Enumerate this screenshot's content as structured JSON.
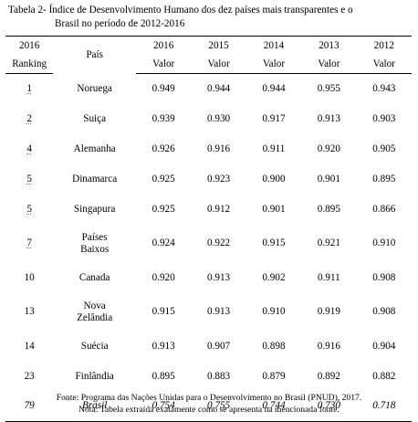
{
  "caption": {
    "line1": "Tabela 2- Índice de Desenvolvimento  Humano dos dez países mais transparentes  e o",
    "line2": "Brasil  no período  de 2012-2016"
  },
  "header": {
    "rank_year": "2016",
    "rank_label": "Ranking",
    "country_label": "País",
    "years": [
      "2016",
      "2015",
      "2014",
      "2013",
      "2012"
    ],
    "value_label": "Valor"
  },
  "rows": [
    {
      "rank": "1",
      "country": "Noruega",
      "values": [
        "0.949",
        "0.944",
        "0.944",
        "0.955",
        "0.943"
      ]
    },
    {
      "rank": "2",
      "country": "Suiça",
      "values": [
        "0.939",
        "0.930",
        "0.917",
        "0.913",
        "0.903"
      ]
    },
    {
      "rank": "4",
      "country": "Alemanha",
      "values": [
        "0.926",
        "0.916",
        "0.911",
        "0.920",
        "0.905"
      ]
    },
    {
      "rank": "5",
      "country": "Dinamarca",
      "values": [
        "0.925",
        "0.923",
        "0.900",
        "0.901",
        "0.895"
      ]
    },
    {
      "rank": "5",
      "country": "Singapura",
      "values": [
        "0.925",
        "0.912",
        "0.901",
        "0.895",
        "0.866"
      ]
    },
    {
      "rank": "7",
      "country_line1": "Países",
      "country_line2": "Baixos",
      "values": [
        "0.924",
        "0.922",
        "0.915",
        "0.921",
        "0.910"
      ]
    },
    {
      "rank": "10",
      "country": "Canada",
      "values": [
        "0.920",
        "0.913",
        "0.902",
        "0.911",
        "0.908"
      ]
    },
    {
      "rank": "13",
      "country_line1": "Nova",
      "country_line2": "Zelândia",
      "values": [
        "0.915",
        "0.913",
        "0.910",
        "0.919",
        "0.908"
      ]
    },
    {
      "rank": "14",
      "country": "Suécia",
      "values": [
        "0.913",
        "0.907",
        "0.898",
        "0.916",
        "0.904"
      ]
    },
    {
      "rank": "23",
      "country": "Finlândia",
      "values": [
        "0.895",
        "0.883",
        "0.879",
        "0.892",
        "0.882"
      ]
    },
    {
      "rank": "79",
      "country": "Brasil",
      "values": [
        "0.754",
        "0.755",
        "0.744",
        "0.730",
        "0.718"
      ]
    }
  ],
  "notes": {
    "source": "Fonte: Programa das Nações Unidas para o Desenvolvimento no Brasil (PNUD), 2017.",
    "note": "Nota: Tabela extraída exatamente como se apresenta na mencionada fonte."
  }
}
